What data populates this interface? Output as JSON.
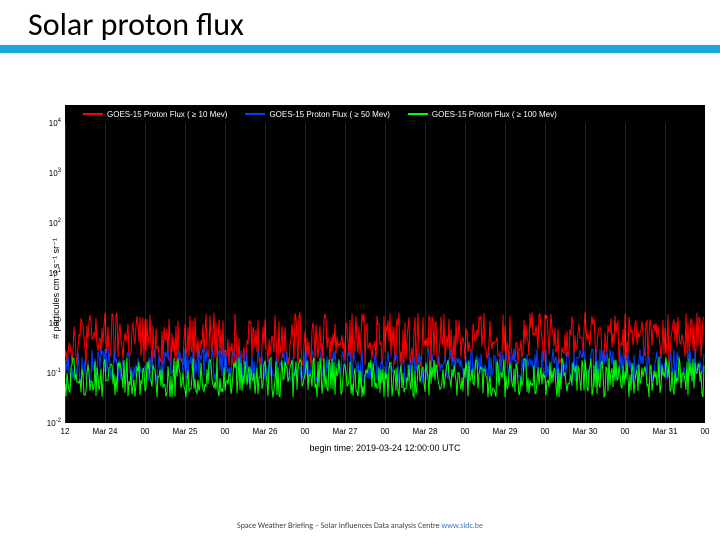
{
  "slide": {
    "title": "Solar proton flux",
    "title_color": "#000000",
    "title_fontsize": 32,
    "accent_bar_color": "#1ca4e0"
  },
  "footer": {
    "text_prefix": "Space Weather Briefing – Solar Influences Data analysis Centre ",
    "link_text": "www.sidc.be",
    "link_color": "#4472c4"
  },
  "chart": {
    "type": "line-timeseries",
    "background_color": "#000000",
    "outer_background": "#ffffff",
    "ylabel": "# particules cm⁻² s⁻¹ sr⁻¹",
    "xlabel": "begin time: 2019-03-24 12:00:00 UTC",
    "yaxis": {
      "scale": "log",
      "min_exp": -2,
      "max_exp": 4,
      "ticks": [
        -2,
        -1,
        0,
        1,
        2,
        3,
        4
      ]
    },
    "xaxis": {
      "ticks": [
        {
          "pos": 0.0,
          "label": "12"
        },
        {
          "pos": 0.0625,
          "label": "Mar 24"
        },
        {
          "pos": 0.125,
          "label": "00"
        },
        {
          "pos": 0.1875,
          "label": "Mar 25"
        },
        {
          "pos": 0.25,
          "label": "00"
        },
        {
          "pos": 0.3125,
          "label": "Mar 26"
        },
        {
          "pos": 0.375,
          "label": "00"
        },
        {
          "pos": 0.4375,
          "label": "Mar 27"
        },
        {
          "pos": 0.5,
          "label": "00"
        },
        {
          "pos": 0.5625,
          "label": "Mar 28"
        },
        {
          "pos": 0.625,
          "label": "00"
        },
        {
          "pos": 0.6875,
          "label": "Mar 29"
        },
        {
          "pos": 0.75,
          "label": "00"
        },
        {
          "pos": 0.8125,
          "label": "Mar 30"
        },
        {
          "pos": 0.875,
          "label": "00"
        },
        {
          "pos": 0.9375,
          "label": "Mar 31"
        },
        {
          "pos": 1.0,
          "label": "00"
        }
      ]
    },
    "grid_color": "rgba(255,255,255,0.15)",
    "series": [
      {
        "name": "GOES-15 Proton Flux ( ≥ 10 Mev)",
        "color": "#ff0000",
        "baseline_exp": -0.55,
        "noise_amp_exp": 0.55,
        "line_width": 1
      },
      {
        "name": "GOES-15 Proton Flux ( ≥ 50 Mev)",
        "color": "#0040ff",
        "baseline_exp": -1.0,
        "noise_amp_exp": 0.35,
        "line_width": 1
      },
      {
        "name": "GOES-15 Proton Flux ( ≥ 100 Mev)",
        "color": "#00ff00",
        "baseline_exp": -1.25,
        "noise_amp_exp": 0.4,
        "line_width": 1
      }
    ]
  }
}
